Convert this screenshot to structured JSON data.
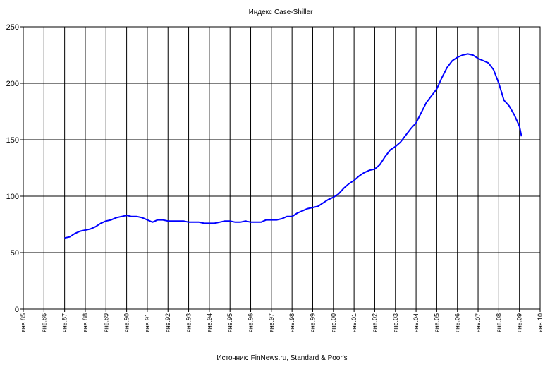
{
  "chart_data": {
    "type": "line",
    "title": "Индекс Case-Shiller",
    "source": "Источник: FinNews.ru, Standard & Poor's",
    "xlabel": "",
    "ylabel": "",
    "ylim": [
      0,
      250
    ],
    "yticks": [
      "0",
      "50",
      "100",
      "150",
      "200",
      "250"
    ],
    "xlim": [
      1985,
      2010
    ],
    "xticks": [
      "янв.85",
      "янв.86",
      "янв.87",
      "янв.88",
      "янв.89",
      "янв.90",
      "янв.91",
      "янв.92",
      "янв.93",
      "янв.94",
      "янв.95",
      "янв.96",
      "янв.97",
      "янв.98",
      "янв.99",
      "янв.00",
      "янв.01",
      "янв.02",
      "янв.03",
      "янв.04",
      "янв.05",
      "янв.06",
      "янв.07",
      "янв.08",
      "янв.09",
      "янв.10"
    ],
    "grid": true,
    "legend": "none",
    "line_color": "#0000ff",
    "series": [
      {
        "x": [
          1987.0,
          1987.25,
          1987.5,
          1987.75,
          1988.0,
          1988.25,
          1988.5,
          1988.75,
          1989.0,
          1989.25,
          1989.5,
          1989.75,
          1990.0,
          1990.25,
          1990.5,
          1990.75,
          1991.0,
          1991.25,
          1991.5,
          1991.75,
          1992.0,
          1992.25,
          1992.5,
          1992.75,
          1993.0,
          1993.25,
          1993.5,
          1993.75,
          1994.0,
          1994.25,
          1994.5,
          1994.75,
          1995.0,
          1995.25,
          1995.5,
          1995.75,
          1996.0,
          1996.25,
          1996.5,
          1996.75,
          1997.0,
          1997.25,
          1997.5,
          1997.75,
          1998.0,
          1998.25,
          1998.5,
          1998.75,
          1999.0,
          1999.25,
          1999.5,
          1999.75,
          2000.0,
          2000.25,
          2000.5,
          2000.75,
          2001.0,
          2001.25,
          2001.5,
          2001.75,
          2002.0,
          2002.25,
          2002.5,
          2002.75,
          2003.0,
          2003.25,
          2003.5,
          2003.75,
          2004.0,
          2004.25,
          2004.5,
          2004.75,
          2005.0,
          2005.25,
          2005.5,
          2005.75,
          2006.0,
          2006.25,
          2006.5,
          2006.75,
          2007.0,
          2007.25,
          2007.5,
          2007.75,
          2008.0,
          2008.25,
          2008.5,
          2008.75,
          2009.0,
          2009.1
        ],
        "values": [
          63,
          64,
          67,
          69,
          70,
          71,
          73,
          76,
          78,
          79,
          81,
          82,
          83,
          82,
          82,
          81,
          79,
          77,
          79,
          79,
          78,
          78,
          78,
          78,
          77,
          77,
          77,
          76,
          76,
          76,
          77,
          78,
          78,
          77,
          77,
          78,
          77,
          77,
          77,
          79,
          79,
          79,
          80,
          82,
          82,
          85,
          87,
          89,
          90,
          91,
          94,
          97,
          99,
          102,
          107,
          111,
          114,
          118,
          121,
          123,
          124,
          128,
          135,
          141,
          144,
          148,
          154,
          160,
          165,
          174,
          183,
          189,
          195,
          205,
          214,
          220,
          223,
          225,
          226,
          225,
          222,
          220,
          218,
          212,
          200,
          185,
          180,
          172,
          162,
          153
        ]
      }
    ]
  }
}
